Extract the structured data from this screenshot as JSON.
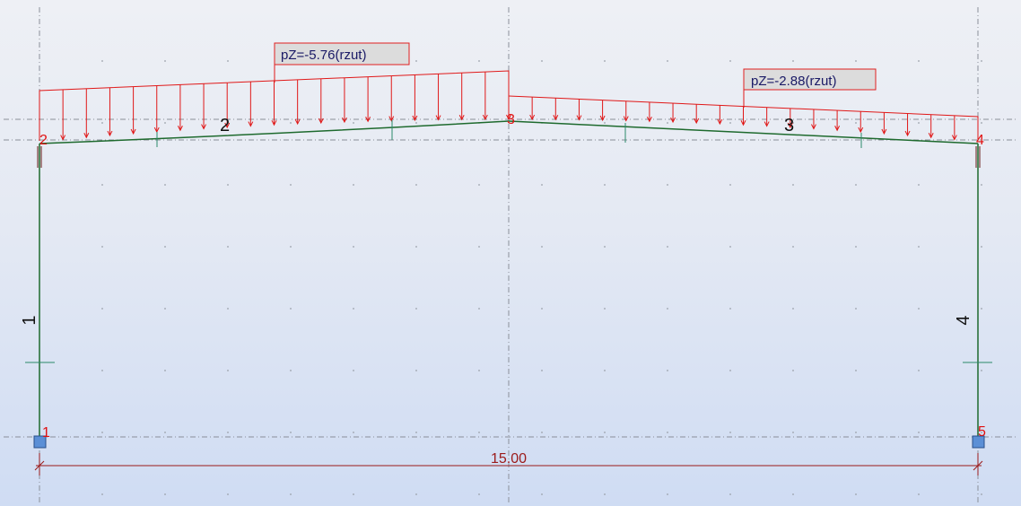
{
  "colors": {
    "load": "#e01818",
    "member": "#1e6a2e",
    "grid": "#8a8f99",
    "dimension": "#9b1a1a",
    "support": "#5b8fd6",
    "node_label": "#e01010"
  },
  "loads": [
    {
      "label": "pZ=-5.76(rzut)"
    },
    {
      "label": "pZ=-2.88(rzut)"
    }
  ],
  "members": [
    {
      "id": "1"
    },
    {
      "id": "2"
    },
    {
      "id": "3"
    },
    {
      "id": "4"
    }
  ],
  "nodes": [
    {
      "id": "1"
    },
    {
      "id": "2"
    },
    {
      "id": "3"
    },
    {
      "id": "4"
    },
    {
      "id": "5"
    }
  ],
  "dimension": {
    "value": "15.00"
  }
}
